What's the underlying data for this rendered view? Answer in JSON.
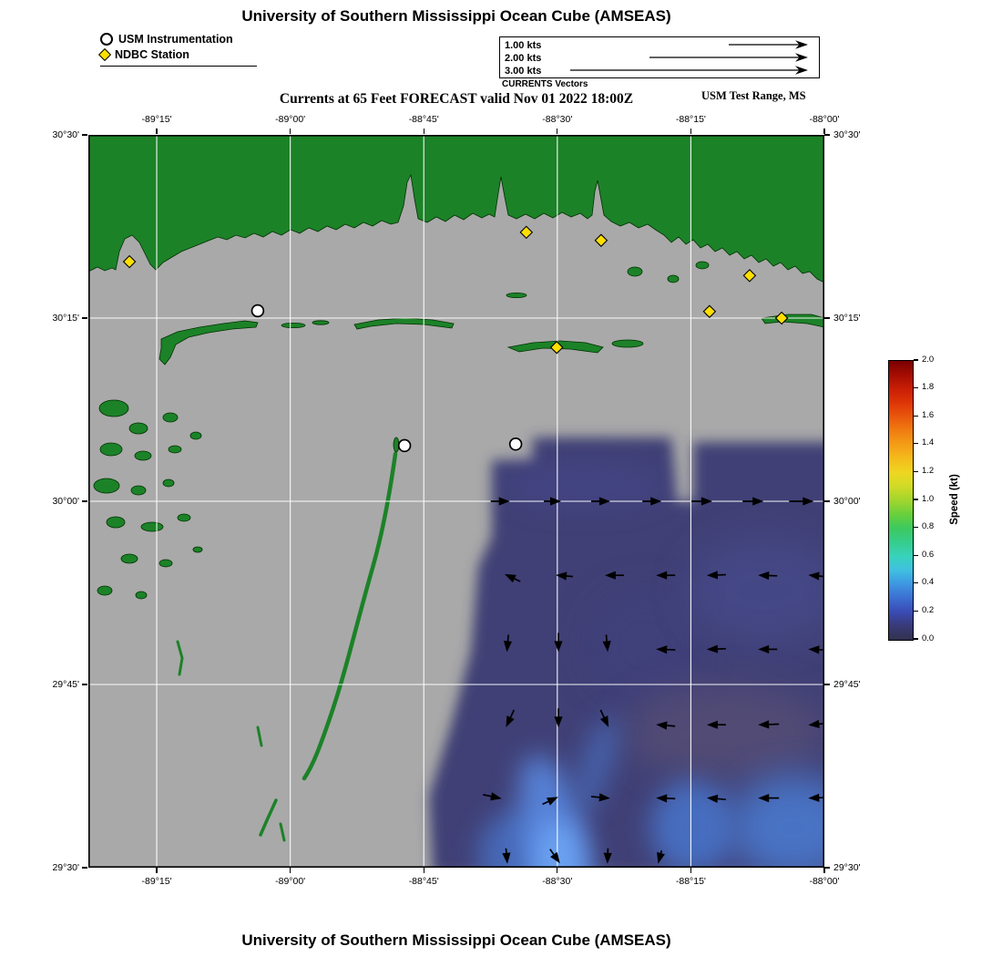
{
  "figure": {
    "top_title": "University of Southern Mississippi Ocean Cube (AMSEAS)",
    "bottom_title": "University of Southern Mississippi Ocean Cube (AMSEAS)"
  },
  "legend": {
    "items": [
      {
        "symbol": "circle",
        "label": "USM Instrumentation"
      },
      {
        "symbol": "diamond",
        "label": "NDBC Station"
      }
    ]
  },
  "vector_scale": {
    "caption": "CURRENTS Vectors",
    "entries": [
      {
        "label": "1.00 kts",
        "kts": 1
      },
      {
        "label": "2.00 kts",
        "kts": 2
      },
      {
        "label": "3.00 kts",
        "kts": 3
      }
    ]
  },
  "header": {
    "subtitle": "Currents at 65 Feet FORECAST valid Nov 01 2022 18:00Z",
    "region": "USM Test Range, MS"
  },
  "axes": {
    "lon_ticks": [
      {
        "label": "-89°15'",
        "lon": -89.25
      },
      {
        "label": "-89°00'",
        "lon": -89.0
      },
      {
        "label": "-88°45'",
        "lon": -88.75
      },
      {
        "label": "-88°30'",
        "lon": -88.5
      },
      {
        "label": "-88°15'",
        "lon": -88.25
      },
      {
        "label": "-88°00'",
        "lon": -88.0
      }
    ],
    "lat_ticks": [
      {
        "label": "30°30'",
        "lat": 30.5
      },
      {
        "label": "30°15'",
        "lat": 30.25
      },
      {
        "label": "30°00'",
        "lat": 30.0
      },
      {
        "label": "29°45'",
        "lat": 29.75
      },
      {
        "label": "29°30'",
        "lat": 29.5
      }
    ]
  },
  "colorbar": {
    "label": "Speed (kt)",
    "ticks": [
      "0.0",
      "0.2",
      "0.4",
      "0.6",
      "0.8",
      "1.0",
      "1.2",
      "1.4",
      "1.6",
      "1.8",
      "2.0"
    ],
    "stops": [
      {
        "v": 0.0,
        "color": "#32324e"
      },
      {
        "v": 0.1,
        "color": "#383a78"
      },
      {
        "v": 0.2,
        "color": "#3a4bb4"
      },
      {
        "v": 0.3,
        "color": "#3c6ed2"
      },
      {
        "v": 0.4,
        "color": "#3e96e2"
      },
      {
        "v": 0.5,
        "color": "#3fc0e0"
      },
      {
        "v": 0.6,
        "color": "#38d2bc"
      },
      {
        "v": 0.7,
        "color": "#36cd8c"
      },
      {
        "v": 0.8,
        "color": "#3cc95e"
      },
      {
        "v": 0.9,
        "color": "#68d03c"
      },
      {
        "v": 1.0,
        "color": "#a2d52e"
      },
      {
        "v": 1.1,
        "color": "#cfdb26"
      },
      {
        "v": 1.2,
        "color": "#eed621"
      },
      {
        "v": 1.3,
        "color": "#f5bb1b"
      },
      {
        "v": 1.4,
        "color": "#f49d16"
      },
      {
        "v": 1.5,
        "color": "#f07d11"
      },
      {
        "v": 1.6,
        "color": "#e9570c"
      },
      {
        "v": 1.7,
        "color": "#dd3507"
      },
      {
        "v": 1.8,
        "color": "#c91e05"
      },
      {
        "v": 1.9,
        "color": "#a50d02"
      },
      {
        "v": 2.0,
        "color": "#7a0000"
      }
    ]
  },
  "chart_data": {
    "type": "heatmap",
    "title": "Currents at 65 Feet FORECAST valid Nov 01 2022 18:00Z",
    "model": "University of Southern Mississippi Ocean Cube (AMSEAS)",
    "region": "USM Test Range, MS",
    "depth_ft": 65,
    "valid": "Nov 01 2022 18:00Z",
    "colorbar_label": "Speed (kt)",
    "speed_range_kt": [
      0.0,
      2.0
    ],
    "map_bounds": {
      "lon": [
        -89.378,
        -88.0
      ],
      "lat": [
        29.5,
        30.5
      ]
    },
    "grid": true,
    "notes": "Current-speed field (mostly 0.0-0.6 kt, dark blue/purple with brighter blue streaks) covers the southeast offshore quadrant; gray = no data water; green = land and barrier islands",
    "land_color": "#1c8228",
    "nodata_color": "#a9a9a9",
    "stations": [
      {
        "type": "usm",
        "lon": -89.061,
        "lat": 30.26
      },
      {
        "type": "usm",
        "lon": -88.786,
        "lat": 30.076
      },
      {
        "type": "usm",
        "lon": -88.578,
        "lat": 30.078
      },
      {
        "type": "ndbc",
        "lon": -89.301,
        "lat": 30.327
      },
      {
        "type": "ndbc",
        "lon": -88.558,
        "lat": 30.367
      },
      {
        "type": "ndbc",
        "lon": -88.418,
        "lat": 30.356
      },
      {
        "type": "ndbc",
        "lon": -88.14,
        "lat": 30.308
      },
      {
        "type": "ndbc",
        "lon": -88.215,
        "lat": 30.259
      },
      {
        "type": "ndbc",
        "lon": -88.08,
        "lat": 30.25
      },
      {
        "type": "ndbc",
        "lon": -88.501,
        "lat": 30.21
      }
    ],
    "vectors": [
      {
        "lon": -88.594,
        "lat": 30.0,
        "dir": 0,
        "len": 18
      },
      {
        "lon": -88.498,
        "lat": 30.0,
        "dir": 0,
        "len": 16
      },
      {
        "lon": -88.406,
        "lat": 30.0,
        "dir": 0,
        "len": 18
      },
      {
        "lon": -88.31,
        "lat": 30.0,
        "dir": 0,
        "len": 18
      },
      {
        "lon": -88.215,
        "lat": 30.0,
        "dir": 0,
        "len": 20
      },
      {
        "lon": -88.119,
        "lat": 30.0,
        "dir": 0,
        "len": 20
      },
      {
        "lon": -88.025,
        "lat": 30.0,
        "dir": 0,
        "len": 24
      },
      {
        "lon": -88.594,
        "lat": 29.899,
        "dir": 205,
        "len": 16
      },
      {
        "lon": -88.498,
        "lat": 29.899,
        "dir": 185,
        "len": 16
      },
      {
        "lon": -88.406,
        "lat": 29.899,
        "dir": 180,
        "len": 18
      },
      {
        "lon": -88.31,
        "lat": 29.899,
        "dir": 180,
        "len": 18
      },
      {
        "lon": -88.215,
        "lat": 29.899,
        "dir": 178,
        "len": 18
      },
      {
        "lon": -88.119,
        "lat": 29.899,
        "dir": 182,
        "len": 18
      },
      {
        "lon": -88.025,
        "lat": 29.899,
        "dir": 185,
        "len": 20
      },
      {
        "lon": -88.594,
        "lat": 29.798,
        "dir": 95,
        "len": 16
      },
      {
        "lon": -88.498,
        "lat": 29.798,
        "dir": 90,
        "len": 18
      },
      {
        "lon": -88.406,
        "lat": 29.798,
        "dir": 85,
        "len": 16
      },
      {
        "lon": -88.31,
        "lat": 29.798,
        "dir": 182,
        "len": 18
      },
      {
        "lon": -88.215,
        "lat": 29.798,
        "dir": 178,
        "len": 18
      },
      {
        "lon": -88.119,
        "lat": 29.798,
        "dir": 180,
        "len": 18
      },
      {
        "lon": -88.025,
        "lat": 29.798,
        "dir": 183,
        "len": 20
      },
      {
        "lon": -88.594,
        "lat": 29.695,
        "dir": 115,
        "len": 18
      },
      {
        "lon": -88.498,
        "lat": 29.695,
        "dir": 90,
        "len": 18
      },
      {
        "lon": -88.406,
        "lat": 29.695,
        "dir": 65,
        "len": 18
      },
      {
        "lon": -88.31,
        "lat": 29.695,
        "dir": 185,
        "len": 18
      },
      {
        "lon": -88.215,
        "lat": 29.695,
        "dir": 180,
        "len": 18
      },
      {
        "lon": -88.119,
        "lat": 29.695,
        "dir": 178,
        "len": 20
      },
      {
        "lon": -88.025,
        "lat": 29.695,
        "dir": 175,
        "len": 20
      },
      {
        "lon": -88.609,
        "lat": 29.595,
        "dir": 12,
        "len": 18
      },
      {
        "lon": -88.503,
        "lat": 29.595,
        "dir": 335,
        "len": 16
      },
      {
        "lon": -88.406,
        "lat": 29.595,
        "dir": 5,
        "len": 18
      },
      {
        "lon": -88.31,
        "lat": 29.595,
        "dir": 182,
        "len": 18
      },
      {
        "lon": -88.215,
        "lat": 29.595,
        "dir": 185,
        "len": 18
      },
      {
        "lon": -88.119,
        "lat": 29.595,
        "dir": 180,
        "len": 20
      },
      {
        "lon": -88.025,
        "lat": 29.595,
        "dir": 178,
        "len": 22
      },
      {
        "lon": -88.594,
        "lat": 29.509,
        "dir": 85,
        "len": 14
      },
      {
        "lon": -88.498,
        "lat": 29.509,
        "dir": 55,
        "len": 16
      },
      {
        "lon": -88.406,
        "lat": 29.509,
        "dir": 92,
        "len": 14
      },
      {
        "lon": -88.31,
        "lat": 29.509,
        "dir": 105,
        "len": 12
      }
    ]
  }
}
